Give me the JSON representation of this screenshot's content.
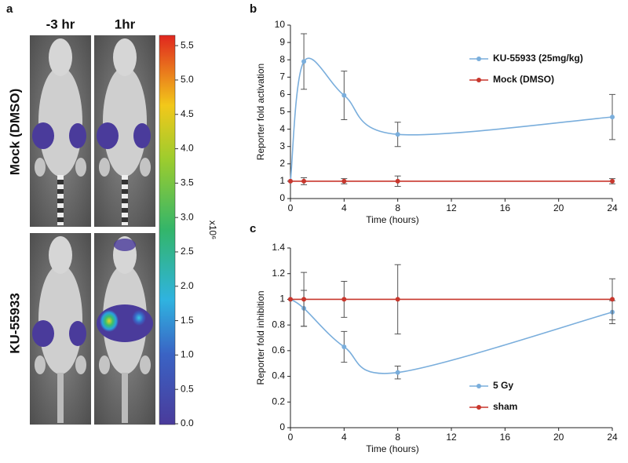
{
  "panel_a": {
    "label": "a",
    "columns": [
      "-3 hr",
      "1hr"
    ],
    "rows": [
      "Mock (DMSO)",
      "KU-55933"
    ],
    "colorbar": {
      "lim": [
        0,
        5.65
      ],
      "unit": "x10⁶",
      "ticks": [
        {
          "value": 0,
          "label": "0.0"
        },
        {
          "value": 0.5,
          "label": "0.5"
        },
        {
          "value": 1,
          "label": "1.0"
        },
        {
          "value": 1.5,
          "label": "1.5"
        },
        {
          "value": 2,
          "label": "2.0"
        },
        {
          "value": 2.5,
          "label": "2.5"
        },
        {
          "value": 3,
          "label": "3.0"
        },
        {
          "value": 3.5,
          "label": "3.5"
        },
        {
          "value": 4,
          "label": "4.0"
        },
        {
          "value": 4.5,
          "label": "4.5"
        },
        {
          "value": 5,
          "label": "5.0"
        },
        {
          "value": 5.5,
          "label": "5.5"
        }
      ]
    }
  },
  "chart_data": [
    {
      "type": "line",
      "label": "b",
      "y_label": "Reporter fold activation",
      "x_label": "Time (hours)",
      "x": [
        0,
        1,
        4,
        8,
        24
      ],
      "xlim": [
        0,
        24
      ],
      "xticks": [
        0,
        4,
        8,
        12,
        16,
        20,
        24
      ],
      "ylim": [
        0,
        10
      ],
      "yticks": [
        0,
        1,
        2,
        3,
        4,
        5,
        6,
        7,
        8,
        9,
        10
      ],
      "legend": "upper right",
      "series": [
        {
          "name": "KU-55933 (25mg/kg)",
          "color": "#7aaedc",
          "smooth": true,
          "values": [
            1,
            7.9,
            5.95,
            3.7,
            4.7
          ],
          "errors": [
            null,
            1.6,
            1.4,
            0.7,
            1.3
          ]
        },
        {
          "name": "Mock (DMSO)",
          "color": "#c8372d",
          "smooth": false,
          "values": [
            1,
            1,
            1,
            1,
            1
          ],
          "errors": [
            null,
            0.2,
            0.15,
            0.3,
            0.15
          ]
        }
      ]
    },
    {
      "type": "line",
      "label": "c",
      "y_label": "Reporter fold inhibition",
      "x_label": "Time (hours)",
      "x": [
        0,
        1,
        4,
        8,
        24
      ],
      "xlim": [
        0,
        24
      ],
      "xticks": [
        0,
        4,
        8,
        12,
        16,
        20,
        24
      ],
      "ylim": [
        0,
        1.4
      ],
      "yticks": [
        0,
        0.2,
        0.4,
        0.6,
        0.8,
        1,
        1.2,
        1.4
      ],
      "legend": "lower right",
      "series": [
        {
          "name": "5 Gy",
          "color": "#7aaedc",
          "smooth": true,
          "values": [
            1,
            0.93,
            0.63,
            0.43,
            0.9
          ],
          "errors": [
            null,
            0.14,
            0.12,
            0.05,
            0.09
          ]
        },
        {
          "name": "sham",
          "color": "#c8372d",
          "smooth": false,
          "values": [
            1,
            1,
            1,
            1,
            1
          ],
          "errors": [
            null,
            0.21,
            0.14,
            0.27,
            0.16
          ]
        }
      ]
    }
  ]
}
